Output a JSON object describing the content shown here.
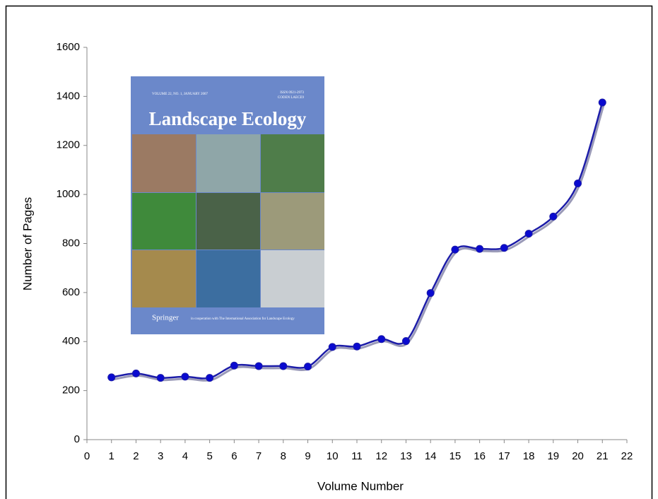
{
  "chart_data": {
    "type": "line",
    "x_label": "Volume Number",
    "y_label": "Number of Pages",
    "x": [
      1,
      2,
      3,
      4,
      5,
      6,
      7,
      8,
      9,
      10,
      11,
      12,
      13,
      14,
      15,
      16,
      17,
      18,
      19,
      20,
      21
    ],
    "series": [
      {
        "color": "#1c1ca8",
        "values": [
          254,
          270,
          252,
          257,
          252,
          302,
          300,
          300,
          298,
          378,
          380,
          410,
          402,
          598,
          775,
          778,
          782,
          840,
          910,
          1045,
          1375
        ]
      }
    ],
    "xlim": [
      0,
      22
    ],
    "xticks": [
      0,
      1,
      2,
      3,
      4,
      5,
      6,
      7,
      8,
      9,
      10,
      11,
      12,
      13,
      14,
      15,
      16,
      17,
      18,
      19,
      20,
      21,
      22
    ],
    "ylim": [
      0,
      1600
    ],
    "yticks": [
      0,
      200,
      400,
      600,
      800,
      1000,
      1200,
      1400,
      1600
    ]
  },
  "cover": {
    "volume": "VOLUME 22, NO. 1, JANUARY 2007",
    "issn": "ISSN 0921-2973",
    "coden": "CODEN LAECE9",
    "title": "Landscape Ecology",
    "publisher": "Springer",
    "note": "in cooperation with The International Association for Landscape Ecology"
  }
}
